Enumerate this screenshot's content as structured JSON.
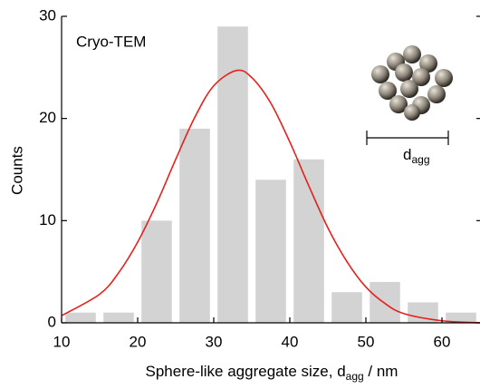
{
  "chart_data": {
    "type": "histogram",
    "annotation": "Cryo-TEM",
    "inset_label": {
      "main": "d",
      "sub": "agg"
    },
    "x_label": {
      "main": "Sphere-like aggregate size, d",
      "sub": "agg",
      "tail": " / nm"
    },
    "y_label": "Counts",
    "bins": [
      10,
      15,
      20,
      25,
      30,
      35,
      40,
      45,
      50,
      55,
      60,
      65
    ],
    "values": [
      1,
      1,
      10,
      19,
      29,
      14,
      16,
      3,
      4,
      2,
      1
    ],
    "color": "#d3d3d3",
    "fit": {
      "color": "#e8201c",
      "x": [
        10,
        15,
        17.5,
        20,
        22.5,
        25,
        27.5,
        30,
        33,
        35,
        37.5,
        40,
        42.5,
        45,
        47.5,
        50,
        52.5,
        55,
        60,
        65
      ],
      "values": [
        0.7,
        2.8,
        4.9,
        7.9,
        11.7,
        16.0,
        20.1,
        23.2,
        24.7,
        24.0,
        21.5,
        17.7,
        13.4,
        9.3,
        6.0,
        3.5,
        1.9,
        0.9,
        0.2,
        0.0
      ]
    },
    "xlim": [
      10,
      65
    ],
    "xticks": [
      10,
      20,
      30,
      40,
      50,
      60
    ],
    "ylim": [
      0,
      30
    ],
    "yticks": [
      0,
      10,
      20,
      30
    ]
  }
}
